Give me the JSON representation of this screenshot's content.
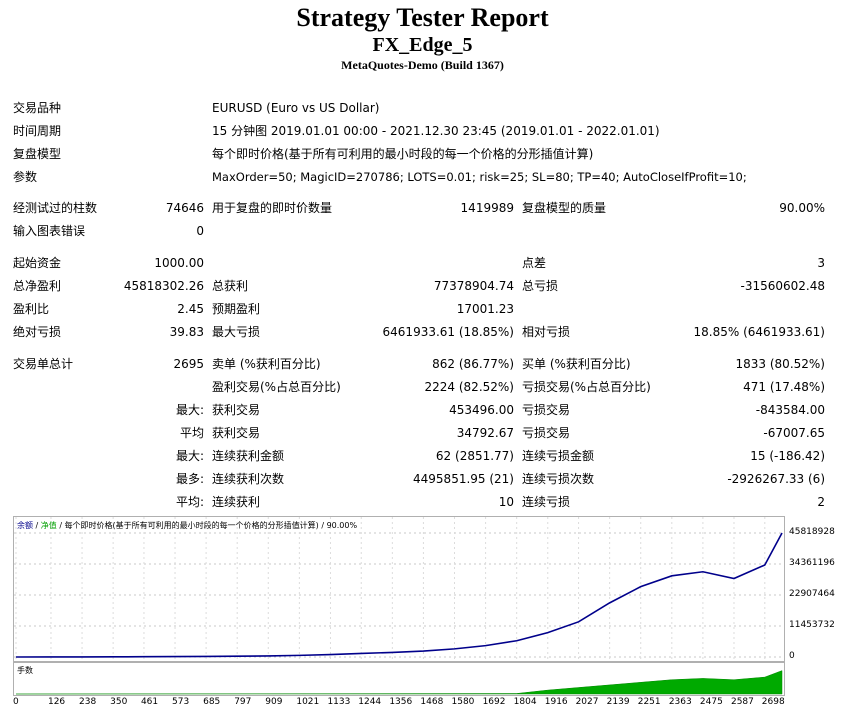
{
  "header": {
    "title": "Strategy Tester Report",
    "expert": "FX_Edge_5",
    "build": "MetaQuotes-Demo (Build 1367)"
  },
  "info": {
    "symbol_label": "交易品种",
    "symbol_value": "EURUSD (Euro vs US Dollar)",
    "period_label": "时间周期",
    "period_value": "15 分钟图 2019.01.01 00:00 - 2021.12.30 23:45 (2019.01.01 - 2022.01.01)",
    "model_label": "复盘模型",
    "model_value": "每个即时价格(基于所有可利用的最小时段的每一个价格的分形插值计算)",
    "params_label": "参数",
    "params_value": "MaxOrder=50; MagicID=270786; LOTS=0.01; risk=25; SL=80; TP=40; AutoCloseIfProfit=10;"
  },
  "stats": {
    "bars_label": "经测试过的柱数",
    "bars_value": "74646",
    "ticks_label": "用于复盘的即时价数量",
    "ticks_value": "1419989",
    "quality_label": "复盘模型的质量",
    "quality_value": "90.00%",
    "mismatch_label": "输入图表错误",
    "mismatch_value": "0",
    "deposit_label": "起始资金",
    "deposit_value": "1000.00",
    "spread_label": "点差",
    "spread_value": "3",
    "net_label": "总净盈利",
    "net_value": "45818302.26",
    "gross_profit_label": "总获利",
    "gross_profit_value": "77378904.74",
    "gross_loss_label": "总亏损",
    "gross_loss_value": "-31560602.48",
    "pf_label": "盈利比",
    "pf_value": "2.45",
    "payoff_label": "预期盈利",
    "payoff_value": "17001.23",
    "abs_dd_label": "绝对亏损",
    "abs_dd_value": "39.83",
    "max_dd_label": "最大亏损",
    "max_dd_value": "6461933.61 (18.85%)",
    "rel_dd_label": "相对亏损",
    "rel_dd_value": "18.85% (6461933.61)",
    "trades_label": "交易单总计",
    "trades_value": "2695",
    "short_label": "卖单 (%获利百分比)",
    "short_value": "862 (86.77%)",
    "long_label": "买单 (%获利百分比)",
    "long_value": "1833 (80.52%)",
    "win_label": "盈利交易(%占总百分比)",
    "win_value": "2224 (82.52%)",
    "loss_label": "亏损交易(%占总百分比)",
    "loss_value": "471 (17.48%)",
    "largest_prefix": "最大:",
    "largest_win_label": "获利交易",
    "largest_win_value": "453496.00",
    "largest_loss_label": "亏损交易",
    "largest_loss_value": "-843584.00",
    "avg_prefix": "平均",
    "avg_win_label": "获利交易",
    "avg_win_value": "34792.67",
    "avg_loss_label": "亏损交易",
    "avg_loss_value": "-67007.65",
    "maxcons_prefix": "最大:",
    "maxcons_win_label": "连续获利金额",
    "maxcons_win_value": "62 (2851.77)",
    "maxcons_loss_label": "连续亏损金额",
    "maxcons_loss_value": "15 (-186.42)",
    "maxamt_prefix": "最多:",
    "maxamt_win_label": "连续获利次数",
    "maxamt_win_value": "4495851.95 (21)",
    "maxamt_loss_label": "连续亏损次数",
    "maxamt_loss_value": "-2926267.33 (6)",
    "avgcons_prefix": "平均:",
    "avgcons_win_label": "连续获利",
    "avgcons_win_value": "10",
    "avgcons_loss_label": "连续亏损",
    "avgcons_loss_value": "2"
  },
  "chart_legend": {
    "balance": "余额",
    "sep1": " / ",
    "equity": "净值",
    "sep2": " / ",
    "model": "每个即时价格(基于所有可利用的最小时段的每一个价格的分形插值计算) / 90.00%"
  },
  "chart_data": [
    {
      "type": "line",
      "x": [
        0,
        126,
        238,
        350,
        461,
        573,
        685,
        797,
        909,
        1021,
        1133,
        1244,
        1356,
        1468,
        1580,
        1692,
        1804,
        1916,
        2027,
        2139,
        2251,
        2363,
        2475,
        2587,
        2698,
        2760
      ],
      "series": [
        {
          "values": [
            1000,
            20000,
            40000,
            70000,
            100000,
            150000,
            200000,
            300000,
            400000,
            600000,
            900000,
            1300000,
            1700000,
            2200000,
            3000000,
            4200000,
            6000000,
            9000000,
            13000000,
            20000000,
            26000000,
            30000000,
            31500000,
            29000000,
            34000000,
            45818302
          ]
        }
      ],
      "y_ticks": [
        "45818928",
        "34361196",
        "22907464",
        "11453732",
        "0"
      ],
      "ylim": [
        0,
        45818928
      ],
      "color": "#00008b"
    },
    {
      "type": "area",
      "label": "手数",
      "x_ticks": [
        "0",
        "126",
        "238",
        "350",
        "461",
        "573",
        "685",
        "797",
        "909",
        "1021",
        "1133",
        "1244",
        "1356",
        "1468",
        "1580",
        "1692",
        "1804",
        "1916",
        "2027",
        "2139",
        "2251",
        "2363",
        "2475",
        "2587",
        "2698"
      ],
      "x": [
        0,
        1804,
        1916,
        2027,
        2139,
        2251,
        2363,
        2475,
        2587,
        2698,
        2760
      ],
      "values": [
        0,
        0.02,
        0.15,
        0.25,
        0.35,
        0.45,
        0.55,
        0.6,
        0.55,
        0.65,
        0.9
      ],
      "ylim": [
        0,
        1
      ],
      "color": "#00aa00"
    }
  ]
}
